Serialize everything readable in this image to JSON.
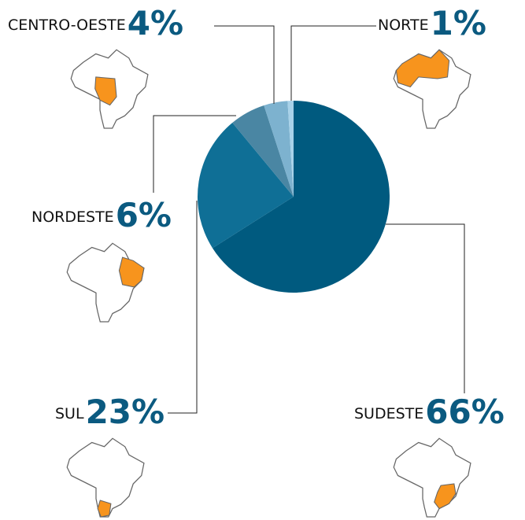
{
  "chart_data": {
    "type": "pie",
    "categories": [
      "SUDESTE",
      "SUL",
      "NORDESTE",
      "CENTRO-OESTE",
      "NORTE"
    ],
    "values": [
      66,
      23,
      6,
      4,
      1
    ],
    "value_labels": [
      "66%",
      "23%",
      "6%",
      "4%",
      "1%"
    ],
    "colors": [
      "#005a7f",
      "#0f6f96",
      "#4a86a3",
      "#7db2cf",
      "#a8d2e9"
    ]
  }
}
